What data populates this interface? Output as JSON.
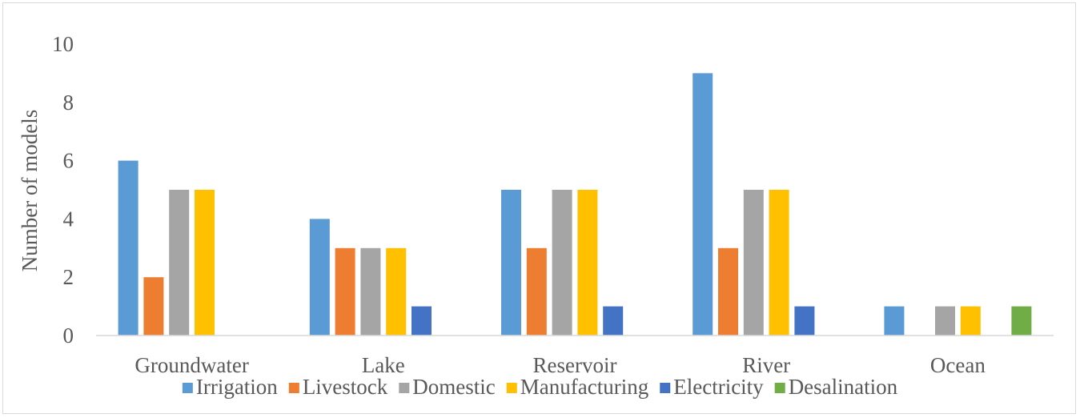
{
  "chart_data": {
    "type": "bar",
    "title": "",
    "xlabel": "",
    "ylabel": "Number of models",
    "ylim": [
      0,
      10
    ],
    "yticks": [
      0,
      2,
      4,
      6,
      8,
      10
    ],
    "grid": false,
    "legend_position": "bottom",
    "categories": [
      "Groundwater",
      "Lake",
      "Reservoir",
      "River",
      "Ocean"
    ],
    "series": [
      {
        "name": "Irrigation",
        "color": "#5b9bd5",
        "values": [
          6,
          4,
          5,
          9,
          1
        ]
      },
      {
        "name": "Livestock",
        "color": "#ed7d31",
        "values": [
          2,
          3,
          3,
          3,
          0
        ]
      },
      {
        "name": "Domestic",
        "color": "#a5a5a5",
        "values": [
          5,
          3,
          5,
          5,
          1
        ]
      },
      {
        "name": "Manufacturing",
        "color": "#ffc000",
        "values": [
          5,
          3,
          5,
          5,
          1
        ]
      },
      {
        "name": "Electricity",
        "color": "#4472c4",
        "values": [
          0,
          1,
          1,
          1,
          0
        ]
      },
      {
        "name": "Desalination",
        "color": "#70ad47",
        "values": [
          0,
          0,
          0,
          0,
          1
        ]
      }
    ]
  }
}
